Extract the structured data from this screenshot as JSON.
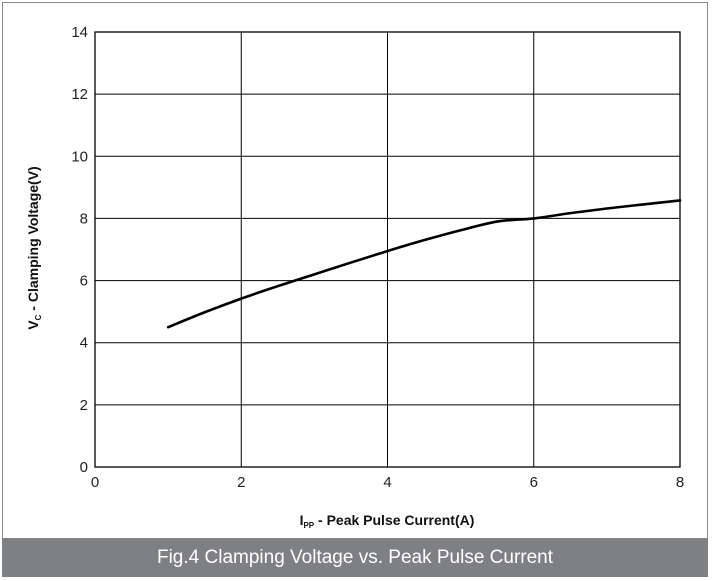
{
  "caption": "Fig.4 Clamping Voltage vs. Peak Pulse Current",
  "colors": {
    "curve": "#000000",
    "grid": "#000000",
    "caption_bg": "#7f8083"
  },
  "chart_data": {
    "type": "line",
    "title": "",
    "xlabel": {
      "main": "I",
      "sub": "PP",
      "rest": " - Peak Pulse Current(A)"
    },
    "ylabel": {
      "main": "V",
      "sub": "C",
      "rest": " - Clamping Voltage(V)"
    },
    "xlim": [
      0,
      8
    ],
    "ylim": [
      0,
      14
    ],
    "xticks": [
      0,
      2,
      4,
      6,
      8
    ],
    "yticks": [
      0,
      2,
      4,
      6,
      8,
      10,
      12,
      14
    ],
    "grid": true,
    "legend": "none",
    "series": [
      {
        "x": [
          1.0,
          1.5,
          2.0,
          2.5,
          3.0,
          3.5,
          4.0,
          4.5,
          5.0,
          5.5,
          6.0,
          6.5,
          7.0,
          7.5,
          8.0
        ],
        "y": [
          4.5,
          4.98,
          5.42,
          5.82,
          6.2,
          6.58,
          6.95,
          7.3,
          7.62,
          7.9,
          8.0,
          8.17,
          8.32,
          8.45,
          8.58
        ]
      }
    ]
  }
}
